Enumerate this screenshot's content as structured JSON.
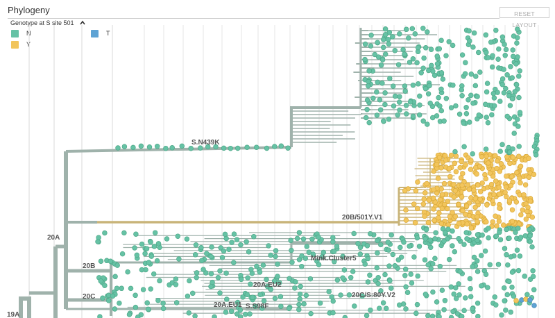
{
  "header": {
    "title": "Phylogeny",
    "reset_label": "RESET LAYOUT"
  },
  "legend": {
    "title": "Genotype at S site 501",
    "toggle_icon": "chevron-up-icon",
    "items": [
      {
        "label": "N",
        "color": "#66c2a5"
      },
      {
        "label": "T",
        "color": "#5ea3d4"
      },
      {
        "label": "Y",
        "color": "#f2c55c"
      }
    ]
  },
  "tree": {
    "branch_color": "#9fb2ab",
    "highlight_branch_color": "#c9b479",
    "clade_labels": [
      "S.N439K",
      "20B/501Y.V1",
      "20A",
      "20B",
      "Mink.Cluster5",
      "20A.EU2",
      "20C",
      "20C/S:80Y.V2",
      "20A.EU1",
      "S.S98F",
      "19A"
    ]
  }
}
